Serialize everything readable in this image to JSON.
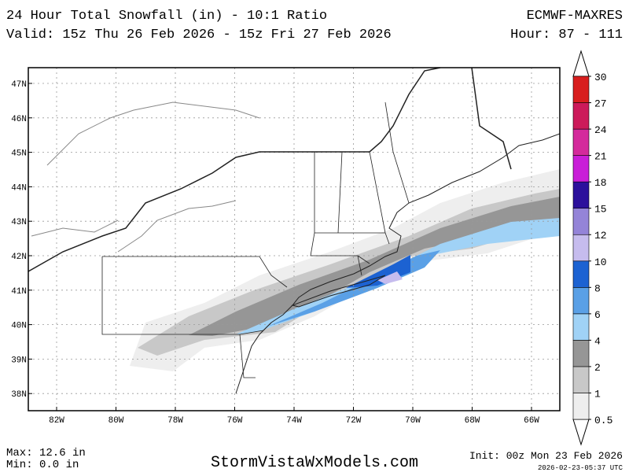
{
  "header": {
    "title": "24 Hour Total Snowfall (in) - 10:1 Ratio",
    "valid": "Valid: 15z Thu 26 Feb 2026 - 15z Fri 27 Feb 2026",
    "model": "ECMWF-MAXRES",
    "hours": "Hour: 87 - 111"
  },
  "map": {
    "lat_labels": [
      "47N",
      "46N",
      "45N",
      "44N",
      "43N",
      "42N",
      "41N",
      "40N",
      "39N",
      "38N"
    ],
    "lon_labels": [
      "82W",
      "80W",
      "78W",
      "76W",
      "74W",
      "72W",
      "70W",
      "68W",
      "66W"
    ]
  },
  "colorbar": {
    "levels": [
      0.5,
      1,
      2,
      4,
      6,
      8,
      10,
      12,
      15,
      18,
      21,
      24,
      27,
      30
    ],
    "colors": [
      "#eeeeee",
      "#c8c8c8",
      "#969696",
      "#a0d2f6",
      "#5aa0e6",
      "#1c62d2",
      "#c6bcee",
      "#9484d8",
      "#2c109c",
      "#c91ed8",
      "#d42a9c",
      "#cc1a5a",
      "#d81e1e"
    ]
  },
  "footer": {
    "max": "Max: 12.6 in",
    "min": "Min: 0.0 in",
    "site": "StormVistaWxModels.com",
    "init": "Init: 00z Mon 23 Feb 2026",
    "stamp": "2026-02-23-05:37 UTC"
  }
}
